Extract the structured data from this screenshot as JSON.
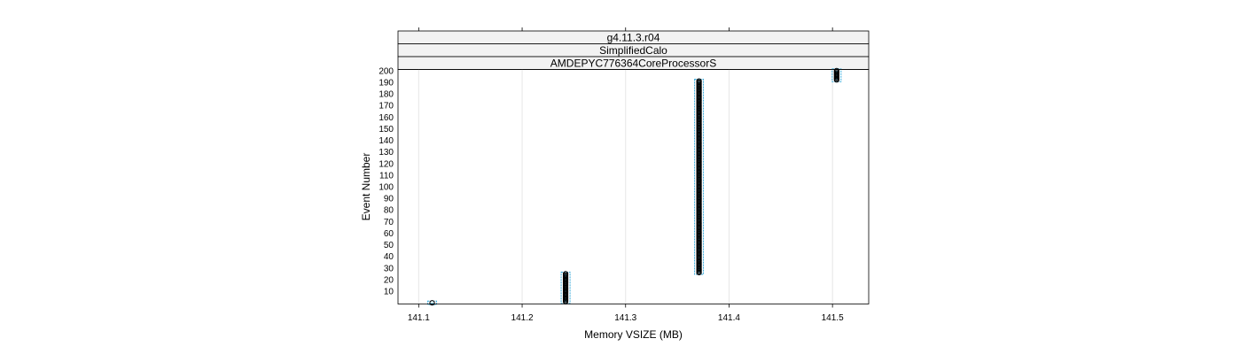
{
  "chart_data": {
    "type": "scatter",
    "strips": [
      "g4.11.3.r04",
      "SimplifiedCalo",
      "AMDEPYC776364CoreProcessorS"
    ],
    "xlabel": "Memory VSIZE (MB)",
    "ylabel": "Event Number",
    "xlim": [
      141.08,
      141.535
    ],
    "ylim": [
      -1,
      201
    ],
    "x_ticks": [
      141.1,
      141.2,
      141.3,
      141.4,
      141.5
    ],
    "x_tick_labels": [
      "141.1",
      "141.2",
      "141.3",
      "141.4",
      "141.5"
    ],
    "y_ticks": [
      10,
      20,
      30,
      40,
      50,
      60,
      70,
      80,
      90,
      100,
      110,
      120,
      130,
      140,
      150,
      160,
      170,
      180,
      190,
      200
    ],
    "y_tick_labels": [
      "10",
      "20",
      "30",
      "40",
      "50",
      "60",
      "70",
      "80",
      "90",
      "100",
      "110",
      "120",
      "130",
      "140",
      "150",
      "160",
      "170",
      "180",
      "190",
      "200"
    ],
    "grid": true,
    "clusters": [
      {
        "x": 141.113,
        "y_min": 0,
        "y_max": 0
      },
      {
        "x": 141.242,
        "y_min": 1,
        "y_max": 25
      },
      {
        "x": 141.371,
        "y_min": 26,
        "y_max": 191
      },
      {
        "x": 141.504,
        "y_min": 192,
        "y_max": 200
      }
    ],
    "colors": {
      "points": "#000000",
      "bands": "#1f9fd6",
      "grid": "#e6e6e6",
      "strip_bg": "#f2f2f2"
    }
  }
}
